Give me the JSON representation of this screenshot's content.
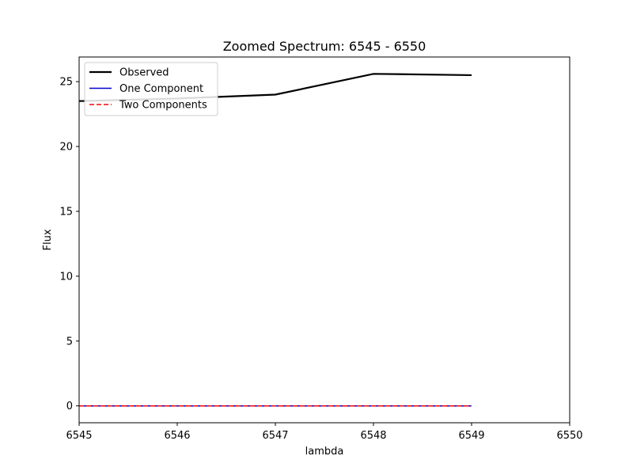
{
  "chart_data": {
    "type": "line",
    "title": "Zoomed Spectrum: 6545 - 6550",
    "xlabel": "lambda",
    "ylabel": "Flux",
    "xlim": [
      6545,
      6550
    ],
    "ylim": [
      -1.3,
      26.9
    ],
    "xticks": [
      6545,
      6546,
      6547,
      6548,
      6549,
      6550
    ],
    "yticks": [
      0,
      5,
      10,
      15,
      20,
      25
    ],
    "grid": false,
    "legend_position": "top-left",
    "series": [
      {
        "name": "Observed",
        "color": "#000000",
        "style": "solid",
        "x": [
          6545,
          6546,
          6547,
          6548,
          6549
        ],
        "y": [
          23.5,
          23.7,
          24.0,
          25.6,
          25.5
        ]
      },
      {
        "name": "One Component",
        "color": "#0000cc",
        "style": "solid",
        "x": [
          6545,
          6546,
          6547,
          6548,
          6549
        ],
        "y": [
          0,
          0,
          0,
          0,
          0
        ]
      },
      {
        "name": "Two Components",
        "color": "#ff0000",
        "style": "dashed",
        "x": [
          6545,
          6546,
          6547,
          6548,
          6549
        ],
        "y": [
          0,
          0,
          0,
          0,
          0
        ]
      }
    ]
  }
}
